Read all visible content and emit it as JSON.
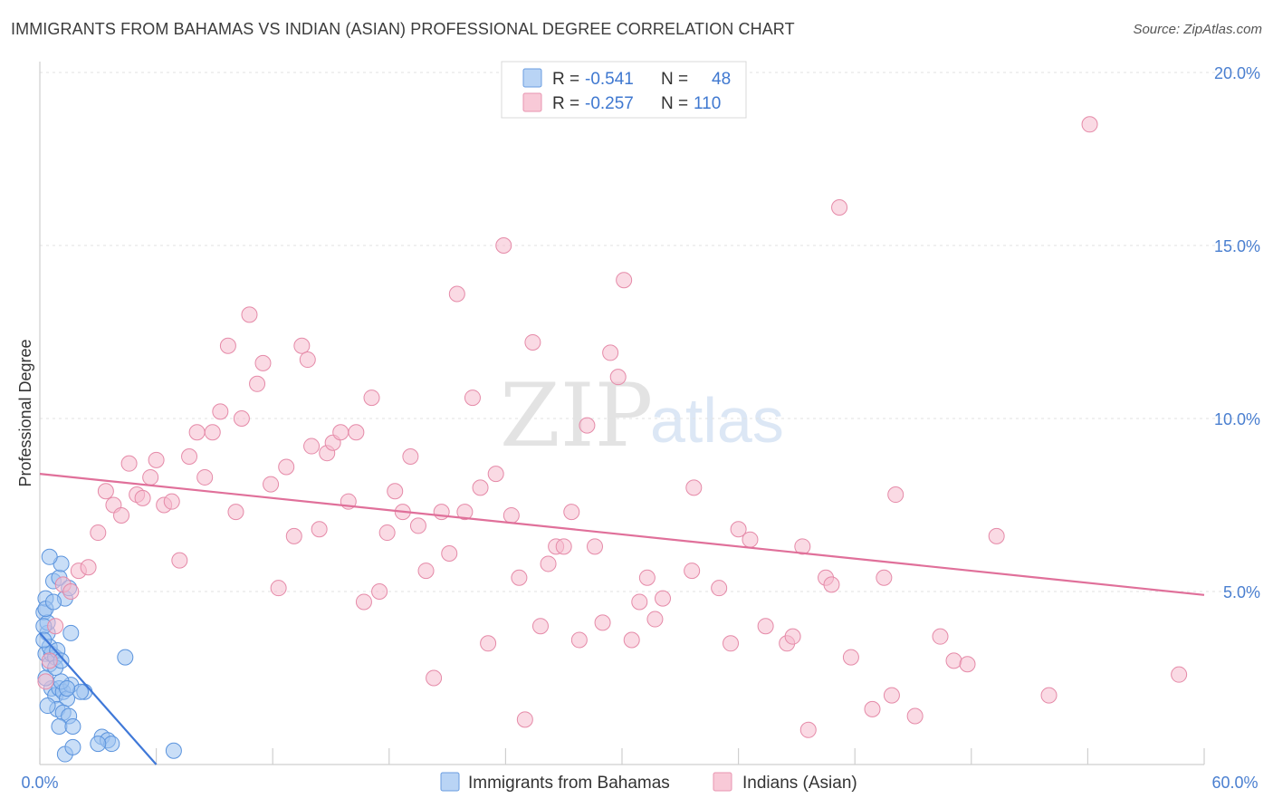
{
  "title": "IMMIGRANTS FROM BAHAMAS VS INDIAN (ASIAN) PROFESSIONAL DEGREE CORRELATION CHART",
  "source": "Source: ZipAtlas.com",
  "watermark": {
    "zip": "ZIP",
    "atlas": "atlas"
  },
  "colors": {
    "blue_fill": "#9cc3f0",
    "blue_stroke": "#5a93dd",
    "blue_line": "#3f78d8",
    "pink_fill": "#f6bccd",
    "pink_stroke": "#e58aa8",
    "pink_line": "#e0709a",
    "tick_text": "#4a7fd0",
    "grid": "#e0e0e0"
  },
  "legend": {
    "rows": [
      {
        "r_label": "R =",
        "r_value": "-0.541",
        "n_label": "N =",
        "n_value": "48"
      },
      {
        "r_label": "R =",
        "r_value": "-0.257",
        "n_label": "N =",
        "n_value": "110"
      }
    ]
  },
  "chart_data": {
    "type": "scatter",
    "title": "IMMIGRANTS FROM BAHAMAS VS INDIAN (ASIAN) PROFESSIONAL DEGREE CORRELATION CHART",
    "xlabel": "",
    "ylabel": "Professional Degree",
    "xlim": [
      0,
      60
    ],
    "ylim": [
      0,
      20
    ],
    "x_tick_labels": [
      "0.0%",
      "60.0%"
    ],
    "y_tick_values": [
      5,
      10,
      15,
      20
    ],
    "y_tick_labels": [
      "5.0%",
      "10.0%",
      "15.0%",
      "20.0%"
    ],
    "series": [
      {
        "name": "Immigrants from Bahamas",
        "color": "blue",
        "trend": {
          "x": [
            0,
            6
          ],
          "y": [
            3.8,
            0.0
          ]
        },
        "points": [
          [
            0.2,
            4.4
          ],
          [
            0.3,
            4.8
          ],
          [
            0.4,
            3.8
          ],
          [
            0.3,
            3.2
          ],
          [
            0.5,
            2.9
          ],
          [
            0.6,
            3.2
          ],
          [
            0.8,
            3.1
          ],
          [
            0.4,
            4.1
          ],
          [
            0.7,
            5.3
          ],
          [
            1.0,
            5.4
          ],
          [
            1.1,
            5.8
          ],
          [
            1.3,
            4.8
          ],
          [
            0.5,
            6.0
          ],
          [
            0.2,
            4.0
          ],
          [
            0.3,
            4.5
          ],
          [
            1.6,
            3.8
          ],
          [
            0.6,
            2.2
          ],
          [
            0.8,
            2.0
          ],
          [
            1.0,
            2.2
          ],
          [
            1.2,
            2.1
          ],
          [
            1.4,
            1.9
          ],
          [
            1.6,
            2.3
          ],
          [
            2.3,
            2.1
          ],
          [
            0.9,
            1.6
          ],
          [
            1.2,
            1.5
          ],
          [
            1.5,
            1.4
          ],
          [
            1.0,
            1.1
          ],
          [
            1.7,
            1.1
          ],
          [
            1.3,
            0.3
          ],
          [
            1.7,
            0.5
          ],
          [
            3.2,
            0.8
          ],
          [
            3.5,
            0.7
          ],
          [
            3.7,
            0.6
          ],
          [
            4.4,
            3.1
          ],
          [
            3.0,
            0.6
          ],
          [
            6.9,
            0.4
          ],
          [
            0.3,
            2.5
          ],
          [
            0.5,
            3.4
          ],
          [
            0.9,
            3.3
          ],
          [
            1.1,
            2.4
          ],
          [
            0.4,
            1.7
          ],
          [
            0.7,
            4.7
          ],
          [
            1.5,
            5.1
          ],
          [
            0.2,
            3.6
          ],
          [
            2.1,
            2.1
          ],
          [
            0.8,
            2.8
          ],
          [
            1.1,
            3.0
          ],
          [
            1.4,
            2.2
          ]
        ]
      },
      {
        "name": "Indians (Asian)",
        "color": "pink",
        "trend": {
          "x": [
            0,
            60
          ],
          "y": [
            8.4,
            4.9
          ]
        },
        "points": [
          [
            0.3,
            2.4
          ],
          [
            0.5,
            3.0
          ],
          [
            0.8,
            4.0
          ],
          [
            1.2,
            5.2
          ],
          [
            1.6,
            5.0
          ],
          [
            2.0,
            5.6
          ],
          [
            2.5,
            5.7
          ],
          [
            3.0,
            6.7
          ],
          [
            3.4,
            7.9
          ],
          [
            3.8,
            7.5
          ],
          [
            4.2,
            7.2
          ],
          [
            4.6,
            8.7
          ],
          [
            5.0,
            7.8
          ],
          [
            5.3,
            7.7
          ],
          [
            5.7,
            8.3
          ],
          [
            6.0,
            8.8
          ],
          [
            6.4,
            7.5
          ],
          [
            6.8,
            7.6
          ],
          [
            7.2,
            5.9
          ],
          [
            7.7,
            8.9
          ],
          [
            8.1,
            9.6
          ],
          [
            8.5,
            8.3
          ],
          [
            8.9,
            9.6
          ],
          [
            9.3,
            10.2
          ],
          [
            9.7,
            12.1
          ],
          [
            10.1,
            7.3
          ],
          [
            10.4,
            10.0
          ],
          [
            10.8,
            13.0
          ],
          [
            11.2,
            11.0
          ],
          [
            11.5,
            11.6
          ],
          [
            11.9,
            8.1
          ],
          [
            12.3,
            5.1
          ],
          [
            12.7,
            8.6
          ],
          [
            13.1,
            6.6
          ],
          [
            13.5,
            12.1
          ],
          [
            13.8,
            11.7
          ],
          [
            14.0,
            9.2
          ],
          [
            14.4,
            6.8
          ],
          [
            14.8,
            9.0
          ],
          [
            15.1,
            9.3
          ],
          [
            15.5,
            9.6
          ],
          [
            15.9,
            7.6
          ],
          [
            16.3,
            9.6
          ],
          [
            16.7,
            4.7
          ],
          [
            17.1,
            10.6
          ],
          [
            17.5,
            5.0
          ],
          [
            17.9,
            6.7
          ],
          [
            18.3,
            7.9
          ],
          [
            18.7,
            7.3
          ],
          [
            19.1,
            8.9
          ],
          [
            19.5,
            6.9
          ],
          [
            19.9,
            5.6
          ],
          [
            20.3,
            2.5
          ],
          [
            20.7,
            7.3
          ],
          [
            21.1,
            6.1
          ],
          [
            21.5,
            13.6
          ],
          [
            21.9,
            7.3
          ],
          [
            22.3,
            10.6
          ],
          [
            22.7,
            8.0
          ],
          [
            23.1,
            3.5
          ],
          [
            23.5,
            8.4
          ],
          [
            23.9,
            15.0
          ],
          [
            24.3,
            7.2
          ],
          [
            24.7,
            5.4
          ],
          [
            25.0,
            1.3
          ],
          [
            25.4,
            12.2
          ],
          [
            25.8,
            4.0
          ],
          [
            26.2,
            5.8
          ],
          [
            26.6,
            6.3
          ],
          [
            27.0,
            6.3
          ],
          [
            27.4,
            7.3
          ],
          [
            27.8,
            3.6
          ],
          [
            28.2,
            9.8
          ],
          [
            28.6,
            6.3
          ],
          [
            29.0,
            4.1
          ],
          [
            29.4,
            11.9
          ],
          [
            29.8,
            11.2
          ],
          [
            30.1,
            14.0
          ],
          [
            30.5,
            3.6
          ],
          [
            30.9,
            4.7
          ],
          [
            31.3,
            5.4
          ],
          [
            31.7,
            4.2
          ],
          [
            32.1,
            4.8
          ],
          [
            33.6,
            5.6
          ],
          [
            33.7,
            8.0
          ],
          [
            35.0,
            5.1
          ],
          [
            35.6,
            3.5
          ],
          [
            36.0,
            6.8
          ],
          [
            36.6,
            6.5
          ],
          [
            37.4,
            4.0
          ],
          [
            38.5,
            3.5
          ],
          [
            38.8,
            3.7
          ],
          [
            39.3,
            6.3
          ],
          [
            39.6,
            1.0
          ],
          [
            40.5,
            5.4
          ],
          [
            40.8,
            5.2
          ],
          [
            41.2,
            16.1
          ],
          [
            41.8,
            3.1
          ],
          [
            42.9,
            1.6
          ],
          [
            43.5,
            5.4
          ],
          [
            43.9,
            2.0
          ],
          [
            44.1,
            7.8
          ],
          [
            45.1,
            1.4
          ],
          [
            46.4,
            3.7
          ],
          [
            47.1,
            3.0
          ],
          [
            47.8,
            2.9
          ],
          [
            49.3,
            6.6
          ],
          [
            52.0,
            2.0
          ],
          [
            54.1,
            18.5
          ],
          [
            58.7,
            2.6
          ]
        ]
      }
    ]
  },
  "bottom_legend": [
    {
      "label": "Immigrants from Bahamas"
    },
    {
      "label": "Indians (Asian)"
    }
  ]
}
